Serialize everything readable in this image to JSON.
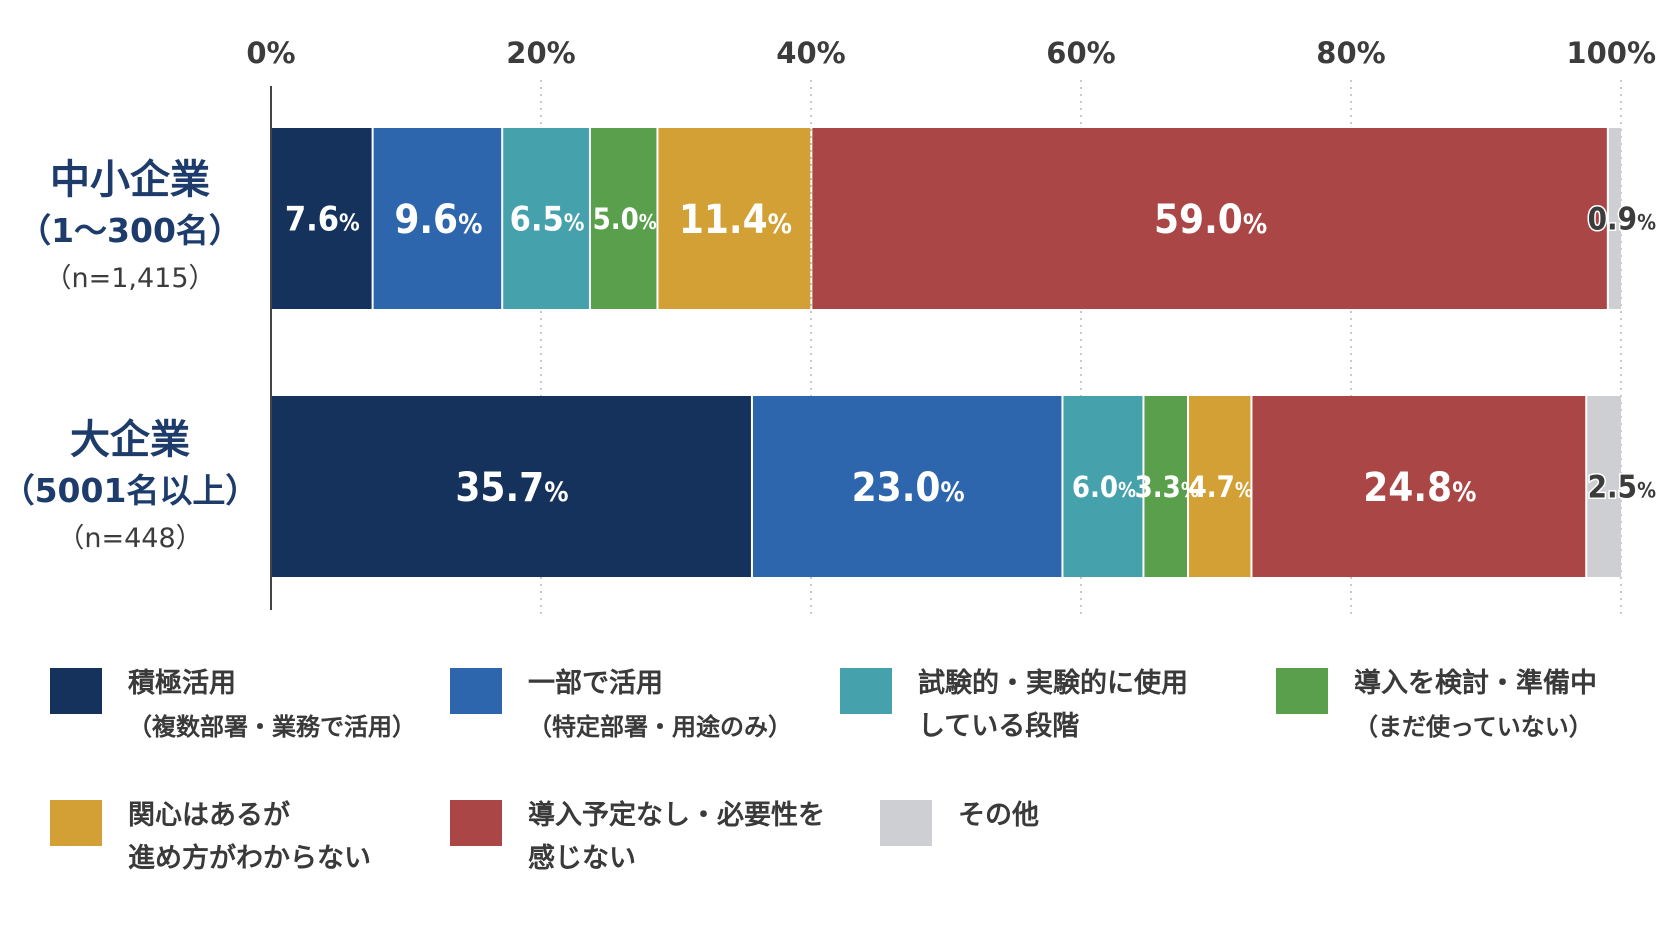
{
  "chart_data": {
    "type": "bar",
    "orientation": "horizontal",
    "stacked": true,
    "x_axis": {
      "min": 0,
      "max": 100,
      "ticks": [
        "0%",
        "20%",
        "40%",
        "60%",
        "80%",
        "100%"
      ],
      "tick_values": [
        0,
        20,
        40,
        60,
        80,
        100
      ]
    },
    "grid": "dotted vertical",
    "legend_position": "bottom",
    "categories": [
      {
        "name": "中小企業",
        "sub": "（1〜300名）",
        "n": "（n=1,415）"
      },
      {
        "name": "大企業",
        "sub": "（5001名以上）",
        "n": "（n=448）"
      }
    ],
    "series": [
      {
        "name": "積極活用",
        "note": "（複数部署・業務で活用）",
        "color": "#15325c",
        "values": [
          7.6,
          35.7
        ]
      },
      {
        "name": "一部で活用",
        "note": "（特定部署・用途のみ）",
        "color": "#2d66ad",
        "values": [
          9.6,
          23.0
        ]
      },
      {
        "name": "試験的・実験的に使用",
        "note": "している段階",
        "color": "#45a1ab",
        "values": [
          6.5,
          6.0
        ]
      },
      {
        "name": "導入を検討・準備中",
        "note": "（まだ使っていない）",
        "color": "#5aa04c",
        "values": [
          5.0,
          3.3
        ]
      },
      {
        "name": "関心はあるが",
        "note": "進め方がわからない",
        "color": "#d2a034",
        "values": [
          11.4,
          4.7
        ]
      },
      {
        "name": "導入予定なし・必要性を",
        "note": "感じない",
        "color": "#ab4646",
        "values": [
          59.0,
          24.8
        ]
      },
      {
        "name": "その他",
        "note": "",
        "color": "#cdcfd2",
        "values": [
          0.9,
          2.5
        ]
      }
    ],
    "value_suffix": "%"
  }
}
